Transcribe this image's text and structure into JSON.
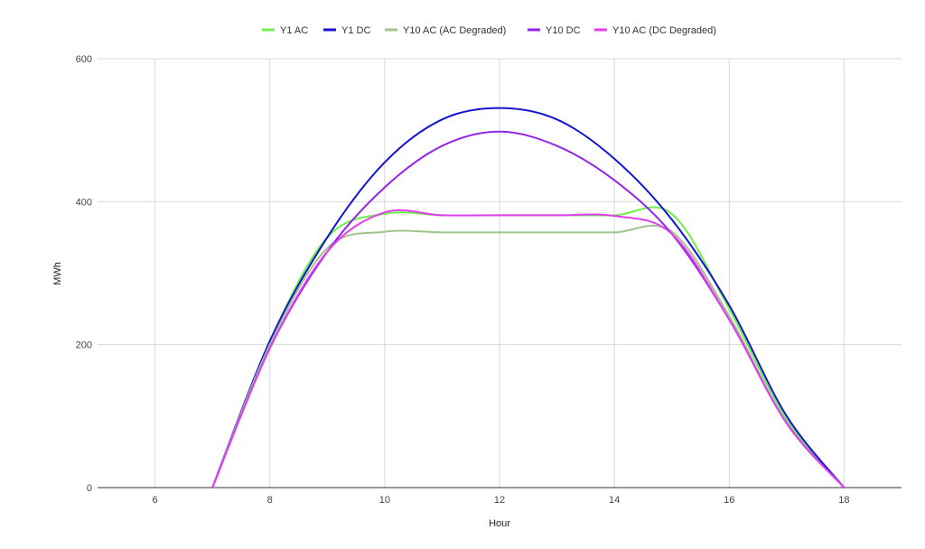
{
  "chart_data": {
    "type": "line",
    "title": "",
    "xlabel": "Hour",
    "ylabel": "MWh",
    "xlim": [
      5,
      19
    ],
    "ylim": [
      0,
      600
    ],
    "x_ticks": [
      6,
      8,
      10,
      12,
      14,
      16,
      18
    ],
    "y_ticks": [
      0,
      200,
      400,
      600
    ],
    "grid": true,
    "legend_position": "top",
    "x": [
      5,
      6,
      7,
      8,
      9,
      10,
      11,
      12,
      13,
      14,
      15,
      16,
      17,
      18,
      19
    ],
    "series": [
      {
        "name": "Y1 AC",
        "color": "#6ef04a",
        "values": [
          0,
          0,
          0,
          205,
          350,
          383,
          381,
          381,
          381,
          381,
          383,
          250,
          95,
          0,
          0
        ]
      },
      {
        "name": "Y1 DC",
        "color": "#1414d6",
        "values": [
          0,
          0,
          0,
          205,
          350,
          455,
          515,
          531,
          515,
          460,
          375,
          255,
          100,
          0,
          0
        ]
      },
      {
        "name": "Y10 AC (AC Degraded)",
        "color": "#9fc48c",
        "values": [
          0,
          0,
          0,
          200,
          335,
          358,
          357,
          357,
          357,
          357,
          358,
          240,
          90,
          0,
          0
        ]
      },
      {
        "name": "Y10 DC",
        "color": "#9526e8",
        "values": [
          0,
          0,
          0,
          195,
          330,
          420,
          478,
          498,
          478,
          430,
          355,
          235,
          90,
          0,
          0
        ]
      },
      {
        "name": "Y10 AC (DC Degraded)",
        "color": "#e23ef0",
        "values": [
          0,
          0,
          0,
          195,
          330,
          385,
          381,
          381,
          381,
          380,
          355,
          235,
          90,
          0,
          0
        ]
      }
    ]
  }
}
